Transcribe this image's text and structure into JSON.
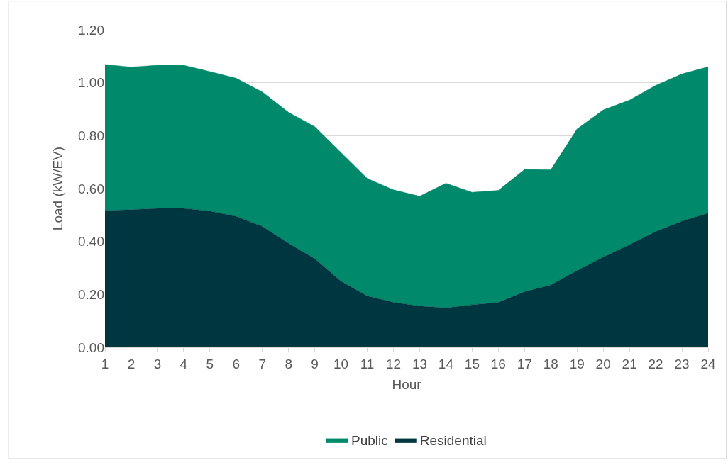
{
  "chart_data": {
    "type": "area",
    "stacked": true,
    "xlabel": "Hour",
    "ylabel": "Load (kW/EV)",
    "x": [
      1,
      2,
      3,
      4,
      5,
      6,
      7,
      8,
      9,
      10,
      11,
      12,
      13,
      14,
      15,
      16,
      17,
      18,
      19,
      20,
      21,
      22,
      23,
      24
    ],
    "xlim": [
      1,
      24
    ],
    "xticks": [
      1,
      2,
      3,
      4,
      5,
      6,
      7,
      8,
      9,
      10,
      11,
      12,
      13,
      14,
      15,
      16,
      17,
      18,
      19,
      20,
      21,
      22,
      23,
      24
    ],
    "ylim": [
      0,
      1.2
    ],
    "yticks": [
      {
        "value": 0,
        "label": "0.00"
      },
      {
        "value": 0.2,
        "label": "0.20"
      },
      {
        "value": 0.4,
        "label": "0.40"
      },
      {
        "value": 0.6,
        "label": "0.60"
      },
      {
        "value": 0.8,
        "label": "0.80"
      },
      {
        "value": 1.0,
        "label": "1.00"
      },
      {
        "value": 1.2,
        "label": "1.20"
      }
    ],
    "grid": "y",
    "legend": "bottom",
    "marker": "none",
    "series": [
      {
        "name": "Residential",
        "color": "#003640",
        "values": [
          0.517,
          0.52,
          0.525,
          0.525,
          0.515,
          0.495,
          0.457,
          0.393,
          0.335,
          0.25,
          0.194,
          0.17,
          0.156,
          0.149,
          0.161,
          0.17,
          0.21,
          0.236,
          0.29,
          0.341,
          0.388,
          0.437,
          0.477,
          0.507
        ]
      },
      {
        "name": "Public",
        "color": "#00896a",
        "values": [
          0.552,
          0.539,
          0.541,
          0.541,
          0.527,
          0.522,
          0.508,
          0.495,
          0.499,
          0.486,
          0.444,
          0.425,
          0.415,
          0.471,
          0.425,
          0.423,
          0.462,
          0.435,
          0.535,
          0.556,
          0.546,
          0.553,
          0.556,
          0.553
        ]
      }
    ]
  }
}
